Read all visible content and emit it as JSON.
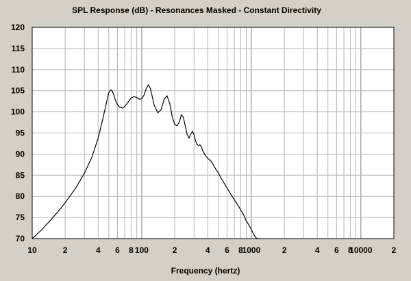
{
  "chart_data": {
    "type": "line",
    "title": "SPL Response (dB) - Resonances Masked - Constant Directivity",
    "xlabel": "Frequency (hertz)",
    "ylabel": "",
    "x_scale": "log",
    "xlim": [
      10,
      20000
    ],
    "ylim": [
      70,
      120
    ],
    "grid": true,
    "y_ticks": [
      "70",
      "75",
      "80",
      "85",
      "90",
      "95",
      "100",
      "105",
      "110",
      "115",
      "120"
    ],
    "x_tick_labels": [
      {
        "value": 10,
        "label": "10"
      },
      {
        "value": 20,
        "label": "2"
      },
      {
        "value": 40,
        "label": "4"
      },
      {
        "value": 60,
        "label": "6"
      },
      {
        "value": 80,
        "label": "8"
      },
      {
        "value": 100,
        "label": "100"
      },
      {
        "value": 200,
        "label": "2"
      },
      {
        "value": 400,
        "label": "4"
      },
      {
        "value": 600,
        "label": "6"
      },
      {
        "value": 800,
        "label": "8"
      },
      {
        "value": 1000,
        "label": "1000"
      },
      {
        "value": 2000,
        "label": "2"
      },
      {
        "value": 4000,
        "label": "4"
      },
      {
        "value": 6000,
        "label": "6"
      },
      {
        "value": 8000,
        "label": "8"
      },
      {
        "value": 10000,
        "label": "10000"
      },
      {
        "value": 20000,
        "label": "2"
      }
    ],
    "series": [
      {
        "x": [
          10,
          12,
          15,
          18,
          20,
          25,
          30,
          35,
          40,
          44,
          47,
          50,
          52,
          54,
          56,
          58,
          60,
          63,
          67,
          70,
          75,
          80,
          85,
          90,
          95,
          100,
          105,
          110,
          115,
          120,
          125,
          130,
          140,
          150,
          160,
          170,
          180,
          190,
          200,
          210,
          220,
          230,
          240,
          250,
          260,
          270,
          280,
          290,
          300,
          310,
          320,
          330,
          340,
          350,
          360,
          380,
          400,
          430,
          460,
          500,
          550,
          600,
          650,
          700,
          750,
          800,
          850,
          900,
          950,
          1000,
          1050,
          1100,
          1150,
          1200
        ],
        "y": [
          70,
          71.9,
          74.6,
          77,
          78.5,
          82,
          85.5,
          89.2,
          93.8,
          98.2,
          101.5,
          104.5,
          105.2,
          104.9,
          103.7,
          102.5,
          101.7,
          101.1,
          100.9,
          101.3,
          102.3,
          103.3,
          103.6,
          103.4,
          103.0,
          103.1,
          104.0,
          105.5,
          106.4,
          105.5,
          103.5,
          101.5,
          99.8,
          100.5,
          103.0,
          103.8,
          102.0,
          98.8,
          97.0,
          96.7,
          97.6,
          99.3,
          98.7,
          96.5,
          94.6,
          93.8,
          94.7,
          95.4,
          94.6,
          93.1,
          92.3,
          92.0,
          92.2,
          91.8,
          90.8,
          89.7,
          89.0,
          88.3,
          87.0,
          85.5,
          83.6,
          82.0,
          80.5,
          79.2,
          78.0,
          76.8,
          75.6,
          74.2,
          73.2,
          72.2,
          71.0,
          70.2,
          69.5,
          69.0
        ]
      }
    ]
  }
}
